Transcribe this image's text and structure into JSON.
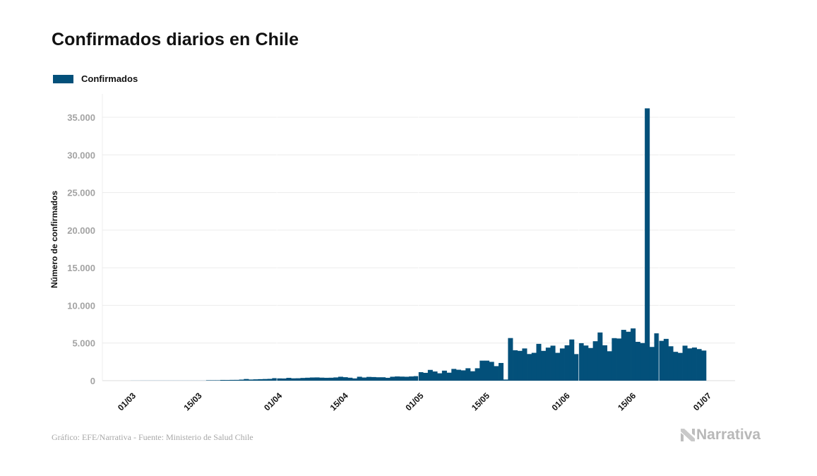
{
  "header": {
    "title": "Confirmados diarios en Chile"
  },
  "legend": {
    "label": "Confirmados",
    "color": "#03507a"
  },
  "footer": {
    "source": "Gráfico: EFE/Narrativa - Fuente: Ministerio de Salud Chile",
    "logo_text": "Narrativa",
    "logo_icon": "narrativa-n-icon"
  },
  "chart_data": {
    "type": "bar",
    "title": "Confirmados diarios en Chile",
    "xlabel": "",
    "ylabel": "Número de confirmados",
    "ylim": [
      0,
      37000
    ],
    "yticks": [
      0,
      5000,
      10000,
      15000,
      20000,
      25000,
      30000,
      35000
    ],
    "ytick_labels": [
      "0",
      "5.000",
      "10.000",
      "15.000",
      "20.000",
      "25.000",
      "30.000",
      "35.000"
    ],
    "xticks": [
      {
        "day": 0,
        "label": "01/03"
      },
      {
        "day": 14,
        "label": "15/03"
      },
      {
        "day": 31,
        "label": "01/04"
      },
      {
        "day": 45,
        "label": "15/04"
      },
      {
        "day": 61,
        "label": "01/05"
      },
      {
        "day": 75,
        "label": "15/05"
      },
      {
        "day": 92,
        "label": "01/06"
      },
      {
        "day": 106,
        "label": "15/06"
      },
      {
        "day": 122,
        "label": "01/07"
      }
    ],
    "x_range_days": [
      -1,
      128
    ],
    "start_date": "01/03",
    "grid": true,
    "legend_position": "top-left",
    "series": [
      {
        "name": "Confirmados",
        "color": "#03507a",
        "values": [
          0,
          0,
          1,
          2,
          1,
          1,
          3,
          3,
          2,
          3,
          10,
          10,
          10,
          13,
          14,
          19,
          20,
          45,
          50,
          96,
          92,
          102,
          105,
          140,
          220,
          150,
          175,
          200,
          220,
          240,
          330,
          300,
          290,
          370,
          310,
          320,
          360,
          390,
          420,
          430,
          400,
          380,
          390,
          430,
          520,
          460,
          390,
          300,
          520,
          420,
          500,
          480,
          450,
          450,
          380,
          520,
          560,
          540,
          520,
          560,
          600,
          1130,
          1040,
          1430,
          1220,
          980,
          1330,
          1060,
          1560,
          1450,
          1370,
          1650,
          1250,
          1650,
          2660,
          2660,
          2500,
          1930,
          2350,
          150,
          5660,
          4040,
          3960,
          4280,
          3540,
          3700,
          4890,
          3960,
          4390,
          4650,
          3700,
          4280,
          4700,
          5470,
          3530,
          4980,
          4670,
          4340,
          5240,
          6400,
          4700,
          3910,
          5650,
          5600,
          6750,
          6500,
          6940,
          5160,
          5000,
          36180,
          4480,
          6290,
          5290,
          5550,
          4570,
          3830,
          3690,
          4650,
          4290,
          4400,
          4200,
          4000
        ]
      }
    ]
  }
}
